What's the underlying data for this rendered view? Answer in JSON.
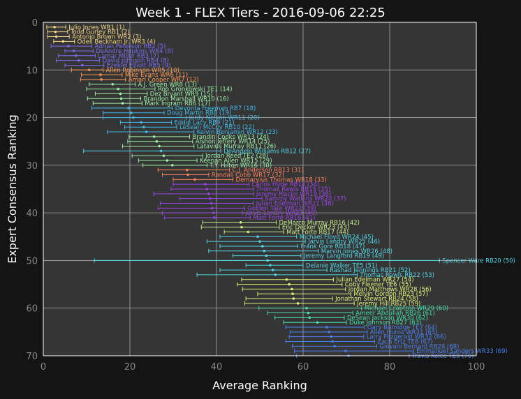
{
  "chart_data": {
    "type": "scatter",
    "title": "Week 1 - FLEX Tiers - 2016-09-06 22:25",
    "xlabel": "Average Ranking",
    "ylabel": "Expert Consensus Ranking",
    "xlim": [
      0,
      100
    ],
    "ylim": [
      70,
      0
    ],
    "xticks": [
      0,
      20,
      40,
      60,
      80,
      100
    ],
    "yticks": [
      0,
      10,
      20,
      30,
      40,
      50,
      60,
      70
    ],
    "grid": true,
    "tier_colors": [
      "#f5d485",
      "#7b6cf0",
      "#ff9a55",
      "#9cf0a8",
      "#41b8e8",
      "#ff8060",
      "#9b45e6",
      "#c9ef8c",
      "#52d4e6",
      "#e0f07a",
      "#45e0a8",
      "#4a80f0"
    ],
    "points": [
      {
        "rank": 1,
        "x": 2.6,
        "lo": 0.8,
        "hi": 5.2,
        "tier": 0,
        "label": "Julio Jones WR1 (1)"
      },
      {
        "rank": 2,
        "x": 2.8,
        "lo": 1.0,
        "hi": 5.6,
        "tier": 0,
        "label": "Todd Gurley RB1 (2)"
      },
      {
        "rank": 3,
        "x": 3.0,
        "lo": 1.0,
        "hi": 6.0,
        "tier": 0,
        "label": "Antonio Brown WR2 (3)"
      },
      {
        "rank": 4,
        "x": 4.6,
        "lo": 2.4,
        "hi": 7.2,
        "tier": 0,
        "label": "Odell Beckham Jr. WR3 (4)"
      },
      {
        "rank": 5,
        "x": 5.8,
        "lo": 1.8,
        "hi": 11.2,
        "tier": 1,
        "label": "Adrian Peterson RB2 (5)"
      },
      {
        "rank": 6,
        "x": 7.0,
        "lo": 5.0,
        "hi": 11.5,
        "tier": 1,
        "label": "DeAndre Hopkins WR4 (6)"
      },
      {
        "rank": 7,
        "x": 7.5,
        "lo": 3.5,
        "hi": 12.0,
        "tier": 1,
        "label": "Lamar Miller RB3 (7)"
      },
      {
        "rank": 8,
        "x": 8.2,
        "lo": 3.0,
        "hi": 13.0,
        "tier": 1,
        "label": "David Johnson RB4 (8)"
      },
      {
        "rank": 9,
        "x": 9.0,
        "lo": 5.0,
        "hi": 14.0,
        "tier": 1,
        "label": "Ezekiel Elliott RB5 (9)"
      },
      {
        "rank": 10,
        "x": 10.6,
        "lo": 6.5,
        "hi": 13.8,
        "tier": 2,
        "label": "Allen Robinson WR5 (10)"
      },
      {
        "rank": 11,
        "x": 13.2,
        "lo": 8.8,
        "hi": 18.2,
        "tier": 2,
        "label": "Mike Evans WR6 (11)"
      },
      {
        "rank": 12,
        "x": 13.4,
        "lo": 8.6,
        "hi": 19.0,
        "tier": 2,
        "label": "Amari Cooper WR7 (12)"
      },
      {
        "rank": 13,
        "x": 16.0,
        "lo": 10.6,
        "hi": 21.2,
        "tier": 3,
        "label": "A.J. Green WR8 (13)"
      },
      {
        "rank": 14,
        "x": 17.3,
        "lo": 10.0,
        "hi": 25.8,
        "tier": 3,
        "label": "Rob Gronkowski TE1 (14)"
      },
      {
        "rank": 15,
        "x": 17.8,
        "lo": 12.0,
        "hi": 24.0,
        "tier": 3,
        "label": "Dez Bryant WR9 (15)"
      },
      {
        "rank": 16,
        "x": 18.0,
        "lo": 10.2,
        "hi": 22.5,
        "tier": 3,
        "label": "Brandon Marshall WR10 (16)"
      },
      {
        "rank": 17,
        "x": 18.3,
        "lo": 11.5,
        "hi": 22.8,
        "tier": 3,
        "label": "Mark Ingram RB6 (17)"
      },
      {
        "rank": 18,
        "x": 19.7,
        "lo": 11.2,
        "hi": 29.8,
        "tier": 4,
        "label": "Devonta Freeman RB7 (18)"
      },
      {
        "rank": 19,
        "x": 20.3,
        "lo": 13.8,
        "hi": 27.9,
        "tier": 4,
        "label": "Doug Martin RB8 (19)"
      },
      {
        "rank": 20,
        "x": 20.8,
        "lo": 13.8,
        "hi": 33.0,
        "tier": 4,
        "label": "Jordy Nelson WR11 (20)"
      },
      {
        "rank": 21,
        "x": 22.6,
        "lo": 17.8,
        "hi": 29.6,
        "tier": 4,
        "label": "Eddie Lacy RB9 (21)"
      },
      {
        "rank": 22,
        "x": 23.2,
        "lo": 18.8,
        "hi": 30.8,
        "tier": 4,
        "label": "LeSean McCoy RB10 (22)"
      },
      {
        "rank": 23,
        "x": 23.8,
        "lo": 14.8,
        "hi": 34.8,
        "tier": 4,
        "label": "Kelvin Benjamin WR12 (23)"
      },
      {
        "rank": 24,
        "x": 25.6,
        "lo": 19.8,
        "hi": 33.8,
        "tier": 3,
        "label": "Brandin Cooks WR13 (24)"
      },
      {
        "rank": 25,
        "x": 26.2,
        "lo": 19.5,
        "hi": 34.5,
        "tier": 3,
        "label": "Alshon Jeffery WR14 (25)"
      },
      {
        "rank": 26,
        "x": 26.8,
        "lo": 18.3,
        "hi": 34.8,
        "tier": 3,
        "label": "Latavius Murray RB11 (26)"
      },
      {
        "rank": 27,
        "x": 27.2,
        "lo": 9.3,
        "hi": 41.0,
        "tier": 8,
        "label": "DeAngelo Williams RB12 (27)"
      },
      {
        "rank": 28,
        "x": 27.8,
        "lo": 20.5,
        "hi": 36.8,
        "tier": 3,
        "label": "Jordan Reed TE2 (28)"
      },
      {
        "rank": 29,
        "x": 28.6,
        "lo": 22.0,
        "hi": 35.5,
        "tier": 3,
        "label": "Keenan Allen WR15 (29)"
      },
      {
        "rank": 30,
        "x": 29.8,
        "lo": 23.0,
        "hi": 37.8,
        "tier": 3,
        "label": "T.Y. Hilton WR16 (30)"
      },
      {
        "rank": 31,
        "x": 33.2,
        "lo": 26.5,
        "hi": 43.0,
        "tier": 5,
        "label": "C.J. Anderson RB13 (31)"
      },
      {
        "rank": 32,
        "x": 33.4,
        "lo": 27.5,
        "hi": 38.2,
        "tier": 5,
        "label": "Randall Cobb WR17 (32)"
      },
      {
        "rank": 33,
        "x": 35.0,
        "lo": 30.0,
        "hi": 43.8,
        "tier": 5,
        "label": "Demaryius Thomas WR18 (33)"
      },
      {
        "rank": 34,
        "x": 37.4,
        "lo": 30.0,
        "hi": 47.5,
        "tier": 6,
        "label": "Carlos Hyde RB14 (34)"
      },
      {
        "rank": 35,
        "x": 37.8,
        "lo": 29.5,
        "hi": 48.5,
        "tier": 6,
        "label": "Thomas Rawls RB15 (35)"
      },
      {
        "rank": 36,
        "x": 38.2,
        "lo": 25.5,
        "hi": 48.5,
        "tier": 6,
        "label": "Jeremy Maclin WR19 (36)"
      },
      {
        "rank": 37,
        "x": 38.5,
        "lo": 31.5,
        "hi": 50.5,
        "tier": 6,
        "label": "Sammy Watkins WR20 (37)"
      },
      {
        "rank": 38,
        "x": 38.8,
        "lo": 27.0,
        "hi": 48.5,
        "tier": 6,
        "label": "Julian Edelman WR21 (38)"
      },
      {
        "rank": 39,
        "x": 39.0,
        "lo": 26.5,
        "hi": 46.5,
        "tier": 6,
        "label": "Golden Tate WR22 (39)"
      },
      {
        "rank": 40,
        "x": 39.3,
        "lo": 27.5,
        "hi": 46.0,
        "tier": 6,
        "label": "Jarvis Landry WR23 (40)"
      },
      {
        "rank": 41,
        "x": 39.5,
        "lo": 28.0,
        "hi": 47.8,
        "tier": 6,
        "label": "Matt Forte RB16 (41)"
      },
      {
        "rank": 42,
        "x": 45.6,
        "lo": 36.8,
        "hi": 53.8,
        "tier": 7,
        "label": "DeMarco Murray RB16 (42)"
      },
      {
        "rank": 43,
        "x": 45.8,
        "lo": 36.5,
        "hi": 54.5,
        "tier": 7,
        "label": "Eric Decker WR23 (43)"
      },
      {
        "rank": 44,
        "x": 47.3,
        "lo": 41.8,
        "hi": 55.5,
        "tier": 7,
        "label": "Matt Forte RB17 (44)"
      },
      {
        "rank": 45,
        "x": 49.5,
        "lo": 40.8,
        "hi": 58.5,
        "tier": 8,
        "label": "Michael Floyd WR24 (45)"
      },
      {
        "rank": 46,
        "x": 50.0,
        "lo": 37.8,
        "hi": 60.5,
        "tier": 8,
        "label": "Jarvis Landry WR25 (46)"
      },
      {
        "rank": 47,
        "x": 50.6,
        "lo": 40.8,
        "hi": 58.8,
        "tier": 8,
        "label": "Frank Gore RB18 (47)"
      },
      {
        "rank": 48,
        "x": 51.0,
        "lo": 38.2,
        "hi": 63.5,
        "tier": 8,
        "label": "Marvin Jones WR26 (48)"
      },
      {
        "rank": 49,
        "x": 51.5,
        "lo": 43.8,
        "hi": 59.5,
        "tier": 8,
        "label": "Jeremy Langford RB19 (49)"
      },
      {
        "rank": 50,
        "x": 51.8,
        "lo": 11.8,
        "hi": 91.5,
        "tier": 8,
        "label": "Spencer Ware RB20 (50)"
      },
      {
        "rank": 51,
        "x": 52.4,
        "lo": 46.8,
        "hi": 60.0,
        "tier": 8,
        "label": "Delanie Walker TE5 (51)"
      },
      {
        "rank": 52,
        "x": 53.0,
        "lo": 40.8,
        "hi": 65.5,
        "tier": 8,
        "label": "Rashad Jennings RB21 (52)"
      },
      {
        "rank": 53,
        "x": 53.6,
        "lo": 35.5,
        "hi": 72.5,
        "tier": 8,
        "label": "Thomas Rawls RB22 (53)"
      },
      {
        "rank": 54,
        "x": 56.2,
        "lo": 45.8,
        "hi": 67.0,
        "tier": 9,
        "label": "Julian Edelman WR27 (54)"
      },
      {
        "rank": 55,
        "x": 56.8,
        "lo": 44.8,
        "hi": 69.0,
        "tier": 9,
        "label": "Coby Fleener TE6 (55)"
      },
      {
        "rank": 56,
        "x": 57.4,
        "lo": 46.0,
        "hi": 69.8,
        "tier": 9,
        "label": "Jordan Matthews WR28 (56)"
      },
      {
        "rank": 57,
        "x": 57.6,
        "lo": 49.5,
        "hi": 71.0,
        "tier": 9,
        "label": "Melvin Gordon RB23 (57)"
      },
      {
        "rank": 58,
        "x": 57.8,
        "lo": 46.8,
        "hi": 66.8,
        "tier": 9,
        "label": "Jonathan Stewart RB24 (58)"
      },
      {
        "rank": 59,
        "x": 58.8,
        "lo": 46.5,
        "hi": 71.8,
        "tier": 9,
        "label": "Jeremy Hill RB25 (59)"
      },
      {
        "rank": 60,
        "x": 60.8,
        "lo": 49.8,
        "hi": 73.5,
        "tier": 10,
        "label": "Michael Crabtree WR29 (60)"
      },
      {
        "rank": 61,
        "x": 61.2,
        "lo": 51.8,
        "hi": 71.5,
        "tier": 10,
        "label": "Ameer Abdullah RB26 (61)"
      },
      {
        "rank": 62,
        "x": 61.5,
        "lo": 53.5,
        "hi": 69.5,
        "tier": 10,
        "label": "DeSean Jackson WR30 (62)"
      },
      {
        "rank": 63,
        "x": 63.3,
        "lo": 55.5,
        "hi": 70.0,
        "tier": 10,
        "label": "Duke Johnson RB27 (63)"
      },
      {
        "rank": 64,
        "x": 65.5,
        "lo": 56.0,
        "hi": 74.2,
        "tier": 11,
        "label": "Gary Barnidge TE7 (64)"
      },
      {
        "rank": 65,
        "x": 66.0,
        "lo": 57.0,
        "hi": 74.8,
        "tier": 11,
        "label": "Allen Hurns WR31 (65)"
      },
      {
        "rank": 66,
        "x": 66.5,
        "lo": 56.8,
        "hi": 74.0,
        "tier": 11,
        "label": "Larry Fitzgerald WR32 (66)"
      },
      {
        "rank": 67,
        "x": 66.8,
        "lo": 56.0,
        "hi": 76.5,
        "tier": 11,
        "label": "Zach Ertz TE8 (67)"
      },
      {
        "rank": 68,
        "x": 67.3,
        "lo": 57.5,
        "hi": 77.0,
        "tier": 11,
        "label": "Giovani Bernard RB28 (68)"
      },
      {
        "rank": 69,
        "x": 69.8,
        "lo": 58.0,
        "hi": 85.5,
        "tier": 11,
        "label": "Emmanuel Sanders WR33 (69)"
      },
      {
        "rank": 70,
        "x": 70.5,
        "lo": 58.5,
        "hi": 84.5,
        "tier": 11,
        "label": "Travis Kelce TE9 (70)"
      }
    ]
  }
}
